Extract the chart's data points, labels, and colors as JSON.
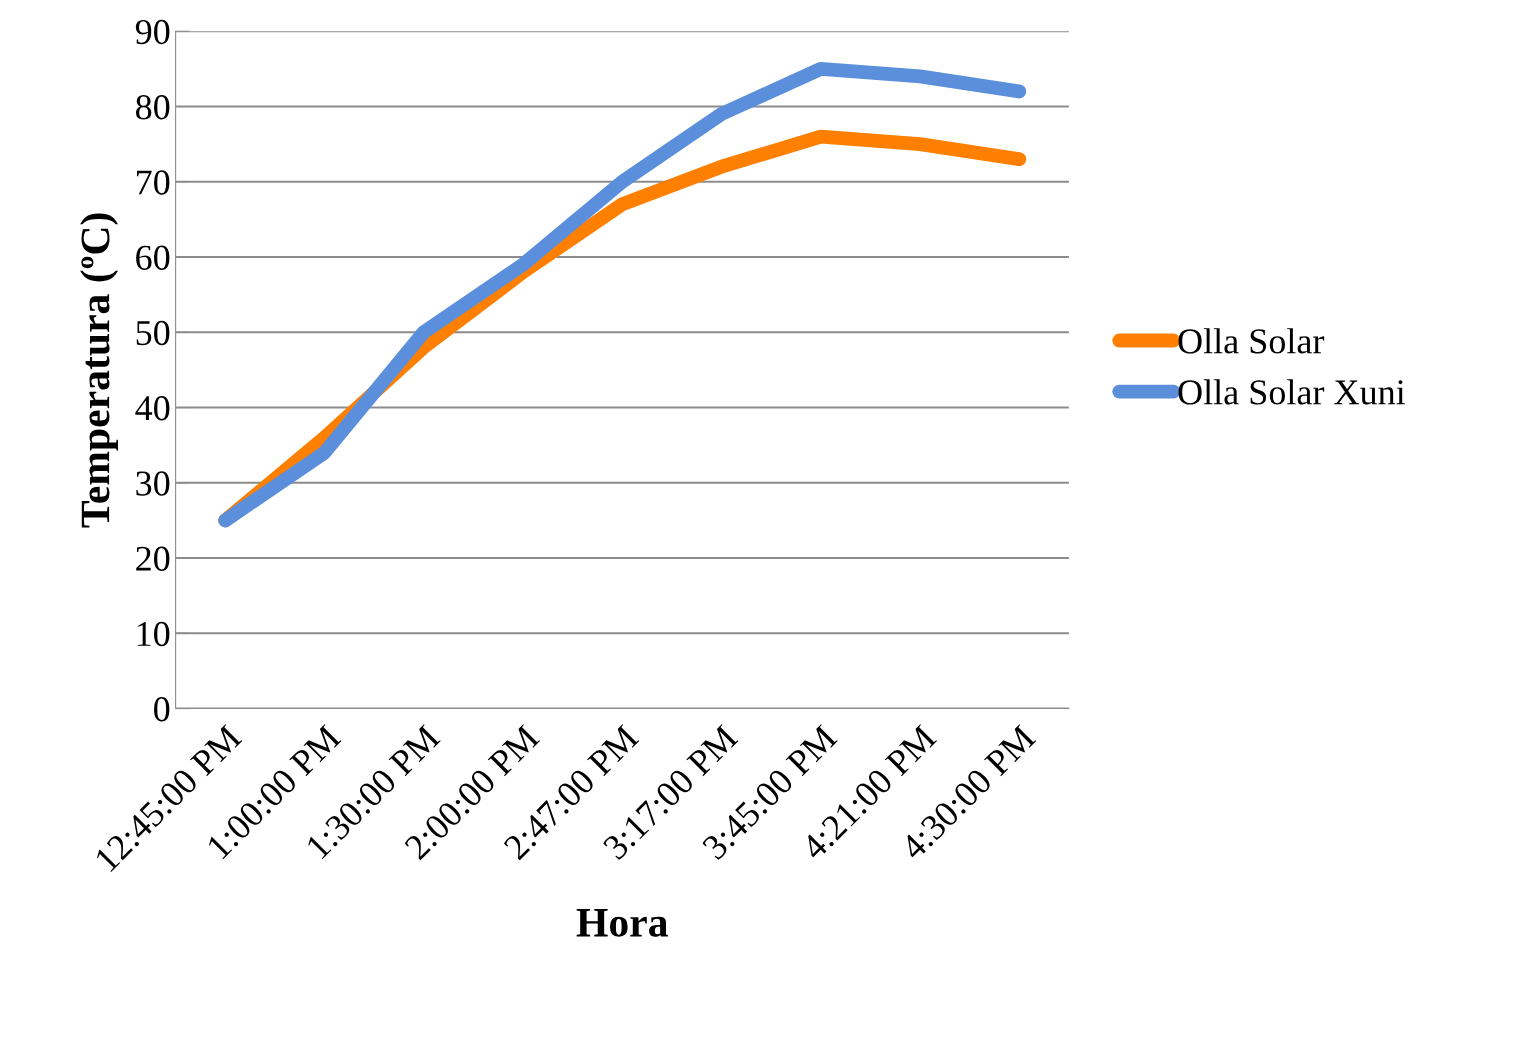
{
  "chart_data": {
    "type": "line",
    "xlabel": "Hora",
    "ylabel": "Temperatura (ºC)",
    "categories": [
      "12:45:00 PM",
      "1:00:00 PM",
      "1:30:00 PM",
      "2:00:00 PM",
      "2:47:00 PM",
      "3:17:00 PM",
      "3:45:00 PM",
      "4:21:00 PM",
      "4:30:00 PM"
    ],
    "series": [
      {
        "name": "Olla Solar",
        "color": "#ff8000",
        "values": [
          25,
          36,
          48,
          58,
          67,
          72,
          76,
          75,
          73
        ]
      },
      {
        "name": "Olla Solar Xuni",
        "color": "#5b8fdc",
        "values": [
          25,
          34,
          50,
          59,
          70,
          79,
          85,
          84,
          82
        ]
      }
    ],
    "ylim": [
      0,
      90
    ],
    "yticks": [
      0,
      10,
      20,
      30,
      40,
      50,
      60,
      70,
      80,
      90
    ],
    "grid": "y",
    "legend": "right",
    "line_style": "solid"
  }
}
